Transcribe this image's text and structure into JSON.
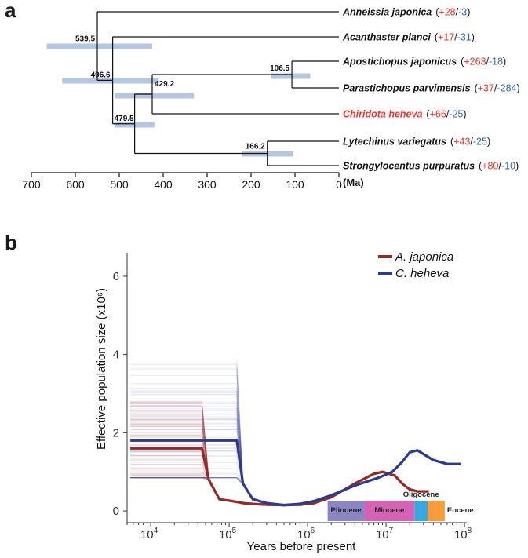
{
  "panel_a": {
    "letter": "a",
    "axis_unit": "(Ma)"
  },
  "panel_b": {
    "letter": "b"
  },
  "chart_data": [
    {
      "type": "phylogeny",
      "xlim": [
        700,
        0
      ],
      "xticks": [
        "700",
        "600",
        "500",
        "400",
        "300",
        "200",
        "100",
        "0"
      ],
      "xlabel": "(Ma)",
      "taxa": [
        {
          "name": "Anneissia japonica",
          "gain": "+28",
          "loss": "-3",
          "highlight": false
        },
        {
          "name": "Acanthaster planci",
          "gain": "+17",
          "loss": "-31",
          "highlight": false
        },
        {
          "name": "Apostichopus japonicus",
          "gain": "+263",
          "loss": "-18",
          "highlight": false
        },
        {
          "name": "Parastichopus parvimensis",
          "gain": "+37",
          "loss": "-284",
          "highlight": false
        },
        {
          "name": "Chiridota heheva",
          "gain": "+66",
          "loss": "-25",
          "highlight": true
        },
        {
          "name": "Lytechinus variegatus",
          "gain": "+43",
          "loss": "-25",
          "highlight": false
        },
        {
          "name": "Strongylocentus purpuratus",
          "gain": "+80",
          "loss": "-10",
          "highlight": false
        }
      ],
      "nodes": [
        {
          "label": "539.5",
          "age": 550,
          "ci": [
            665,
            425
          ]
        },
        {
          "label": "496.6",
          "age": 515,
          "ci": [
            630,
            410
          ]
        },
        {
          "label": "429.2",
          "age": 425,
          "ci": [
            510,
            330
          ]
        },
        {
          "label": "479.5",
          "age": 465,
          "ci": [
            510,
            420
          ]
        },
        {
          "label": "106.5",
          "age": 107,
          "ci": [
            155,
            65
          ]
        },
        {
          "label": "166.2",
          "age": 163,
          "ci": [
            220,
            105
          ]
        }
      ],
      "colors": {
        "gain": "#e8352d",
        "loss": "#3466b0",
        "highlight": "#e8352d",
        "ci": "#b6c6e0"
      }
    },
    {
      "type": "line",
      "xscale": "log",
      "xlim": [
        5000,
        120000000
      ],
      "ylim": [
        -0.3,
        6.6
      ],
      "xlabel": "Years before present",
      "ylabel": "Effective population size (x10⁶)",
      "xticks": [
        10000,
        100000,
        1000000,
        10000000,
        100000000
      ],
      "xtick_labels": [
        {
          "base": "10",
          "exp": "4"
        },
        {
          "base": "10",
          "exp": "5"
        },
        {
          "base": "10",
          "exp": "6"
        },
        {
          "base": "10",
          "exp": "7"
        },
        {
          "base": "10",
          "exp": "8"
        }
      ],
      "yticks": [
        "0",
        "2",
        "4",
        "6"
      ],
      "legend": {
        "position": "top-right"
      },
      "series": [
        {
          "name": "A. japonica",
          "color": "#922a2a",
          "x": [
            5500,
            10000,
            30000,
            45000,
            55000,
            75000,
            110000,
            150000,
            200000,
            300000,
            500000,
            800000,
            1200000,
            2000000,
            4000000,
            7000000,
            9000000,
            11000000,
            13000000,
            16000000,
            20000000,
            25000000,
            35000000
          ],
          "y": [
            1.6,
            1.6,
            1.6,
            1.6,
            0.8,
            0.3,
            0.25,
            0.2,
            0.18,
            0.16,
            0.15,
            0.16,
            0.2,
            0.35,
            0.7,
            0.95,
            1.0,
            0.95,
            0.9,
            0.7,
            0.55,
            0.5,
            0.5
          ]
        },
        {
          "name": "C. heheva",
          "color": "#2e3a8c",
          "x": [
            5500,
            10000,
            30000,
            60000,
            100000,
            125000,
            150000,
            200000,
            300000,
            500000,
            800000,
            1200000,
            2000000,
            4000000,
            8000000,
            12000000,
            16000000,
            20000000,
            25000000,
            40000000,
            60000000,
            90000000
          ],
          "y": [
            1.8,
            1.8,
            1.8,
            1.8,
            1.8,
            1.8,
            0.7,
            0.3,
            0.2,
            0.15,
            0.18,
            0.25,
            0.4,
            0.65,
            0.85,
            1.0,
            1.25,
            1.5,
            1.55,
            1.3,
            1.2,
            1.2
          ]
        }
      ],
      "epochs": [
        {
          "name": "Pliocene",
          "start": 1800000,
          "end": 5300000,
          "color": "#8a86c4"
        },
        {
          "name": "Miocene",
          "start": 5300000,
          "end": 23000000,
          "color": "#d662b6"
        },
        {
          "name": "Oligocene",
          "start": 23000000,
          "end": 33900000,
          "color": "#3aa8e0"
        },
        {
          "name": "Eocene",
          "start": 33900000,
          "end": 56000000,
          "color": "#f59d3a"
        }
      ]
    }
  ]
}
